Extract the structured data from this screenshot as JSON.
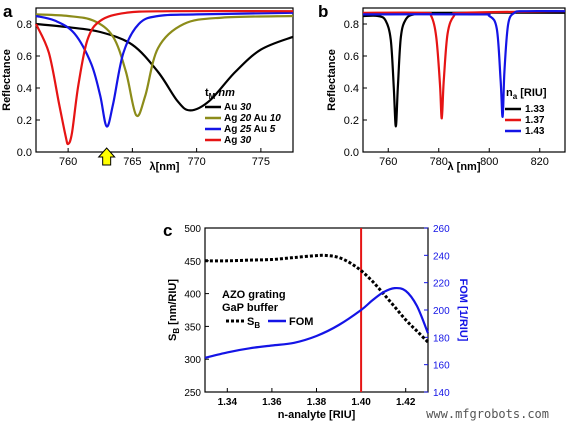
{
  "watermark": "www.mfgrobots.com",
  "colors": {
    "black": "#000000",
    "olive": "#8c8c1a",
    "blue": "#1414e6",
    "red": "#e61414",
    "arrow": "#ffff00"
  },
  "chart_data": [
    {
      "panel": "a",
      "type": "line",
      "xlabel": "λ[nm]",
      "ylabel": "Reflectance",
      "xlim": [
        757.5,
        777.5
      ],
      "ylim": [
        0,
        0.9
      ],
      "xticks": [
        760,
        765,
        770,
        775
      ],
      "yticks": [
        0.0,
        0.2,
        0.4,
        0.6,
        0.8
      ],
      "legend_title": "t",
      "legend_title_sub": "M",
      "legend_title_unit": "nm",
      "legend_location": "right",
      "arrow_at_x": 763,
      "series": [
        {
          "name": "Au 30",
          "label_parts": [
            "Au ",
            "30"
          ],
          "color": "#000000",
          "x": [
            757.5,
            760,
            762.5,
            765,
            767,
            768.5,
            769.5,
            771,
            773,
            775,
            777.5
          ],
          "y": [
            0.8,
            0.78,
            0.75,
            0.67,
            0.5,
            0.32,
            0.26,
            0.32,
            0.5,
            0.64,
            0.72
          ]
        },
        {
          "name": "Ag 20 Au 10",
          "label_parts": [
            "Ag ",
            "20",
            " Au ",
            "10"
          ],
          "color": "#8c8c1a",
          "x": [
            757.5,
            760,
            762,
            763.5,
            764.5,
            765.3,
            766,
            767,
            769,
            772,
            777.5
          ],
          "y": [
            0.86,
            0.85,
            0.82,
            0.72,
            0.5,
            0.23,
            0.35,
            0.65,
            0.8,
            0.84,
            0.85
          ]
        },
        {
          "name": "Ag 25 Au 5",
          "label_parts": [
            "Ag ",
            "25",
            " Au ",
            "5"
          ],
          "color": "#1414e6",
          "x": [
            757.5,
            759,
            760.5,
            761.8,
            762.5,
            763,
            763.5,
            764.3,
            765.5,
            767,
            770,
            777.5
          ],
          "y": [
            0.85,
            0.82,
            0.74,
            0.55,
            0.35,
            0.16,
            0.3,
            0.62,
            0.8,
            0.85,
            0.86,
            0.87
          ]
        },
        {
          "name": "Ag 30",
          "label_parts": [
            "Ag ",
            "30"
          ],
          "color": "#e61414",
          "x": [
            757.5,
            758.5,
            759.3,
            759.8,
            760,
            760.3,
            760.8,
            761.5,
            762.5,
            764.5,
            768,
            777.5
          ],
          "y": [
            0.8,
            0.62,
            0.3,
            0.1,
            0.05,
            0.12,
            0.42,
            0.7,
            0.82,
            0.87,
            0.88,
            0.88
          ]
        }
      ]
    },
    {
      "panel": "b",
      "type": "line",
      "xlabel": "λ [nm]",
      "ylabel": "Reflectance",
      "xlim": [
        750,
        830
      ],
      "ylim": [
        0,
        0.9
      ],
      "xticks": [
        760,
        780,
        800,
        820
      ],
      "yticks": [
        0.0,
        0.2,
        0.4,
        0.6,
        0.8
      ],
      "legend_title": "n",
      "legend_title_sub": "a",
      "legend_title_unit": "[RIU]",
      "legend_location": "right",
      "series": [
        {
          "name": "1.33",
          "color": "#000000",
          "x": [
            750,
            756,
            759,
            761,
            762.2,
            763,
            763.8,
            765,
            767,
            770,
            775,
            830
          ],
          "y": [
            0.85,
            0.85,
            0.82,
            0.7,
            0.4,
            0.16,
            0.4,
            0.72,
            0.83,
            0.86,
            0.87,
            0.87
          ]
        },
        {
          "name": "1.37",
          "color": "#e61414",
          "x": [
            750,
            774,
            777,
            779,
            780.5,
            781.2,
            782,
            783.5,
            786,
            790,
            830
          ],
          "y": [
            0.87,
            0.87,
            0.85,
            0.72,
            0.42,
            0.21,
            0.45,
            0.74,
            0.85,
            0.87,
            0.88
          ]
        },
        {
          "name": "1.43",
          "color": "#1414e6",
          "x": [
            750,
            795,
            800,
            803,
            804.5,
            805.3,
            806,
            807.5,
            810,
            814,
            830
          ],
          "y": [
            0.86,
            0.86,
            0.85,
            0.77,
            0.45,
            0.22,
            0.5,
            0.8,
            0.87,
            0.88,
            0.88
          ]
        }
      ]
    },
    {
      "panel": "c",
      "type": "line",
      "xlabel": "n-analyte [RIU]",
      "ylabel_left": "S",
      "ylabel_left_sub": "B",
      "ylabel_left_unit": " [nm/RIU]",
      "ylabel_right": "FOM [1/RIU]",
      "xlim": [
        1.33,
        1.43
      ],
      "ylim_left": [
        250,
        500
      ],
      "ylim_right": [
        140,
        260
      ],
      "xticks": [
        1.34,
        1.36,
        1.38,
        1.4,
        1.42
      ],
      "yticks_left": [
        250,
        300,
        350,
        400,
        450,
        500
      ],
      "yticks_right": [
        140,
        160,
        180,
        200,
        220,
        240,
        260
      ],
      "annotations": [
        "AZO grating",
        "GaP buffer"
      ],
      "legend_location": "middle-left",
      "vline_x": 1.4,
      "series": [
        {
          "name": "S",
          "name_sub": "B",
          "axis": "left",
          "color": "#000000",
          "dash": true,
          "x": [
            1.33,
            1.34,
            1.35,
            1.36,
            1.37,
            1.38,
            1.385,
            1.39,
            1.395,
            1.4,
            1.405,
            1.41,
            1.415,
            1.42,
            1.425,
            1.43
          ],
          "y": [
            450,
            450,
            451,
            452,
            455,
            458,
            458,
            455,
            447,
            435,
            419,
            400,
            380,
            360,
            343,
            326
          ]
        },
        {
          "name": "FOM",
          "axis": "right",
          "color": "#1414e6",
          "dash": false,
          "x": [
            1.33,
            1.34,
            1.35,
            1.36,
            1.37,
            1.38,
            1.39,
            1.4,
            1.405,
            1.41,
            1.415,
            1.42,
            1.425,
            1.43
          ],
          "y": [
            165,
            169,
            172,
            174,
            176,
            181,
            189,
            200,
            207,
            213,
            216,
            214,
            203,
            183
          ]
        }
      ]
    }
  ]
}
